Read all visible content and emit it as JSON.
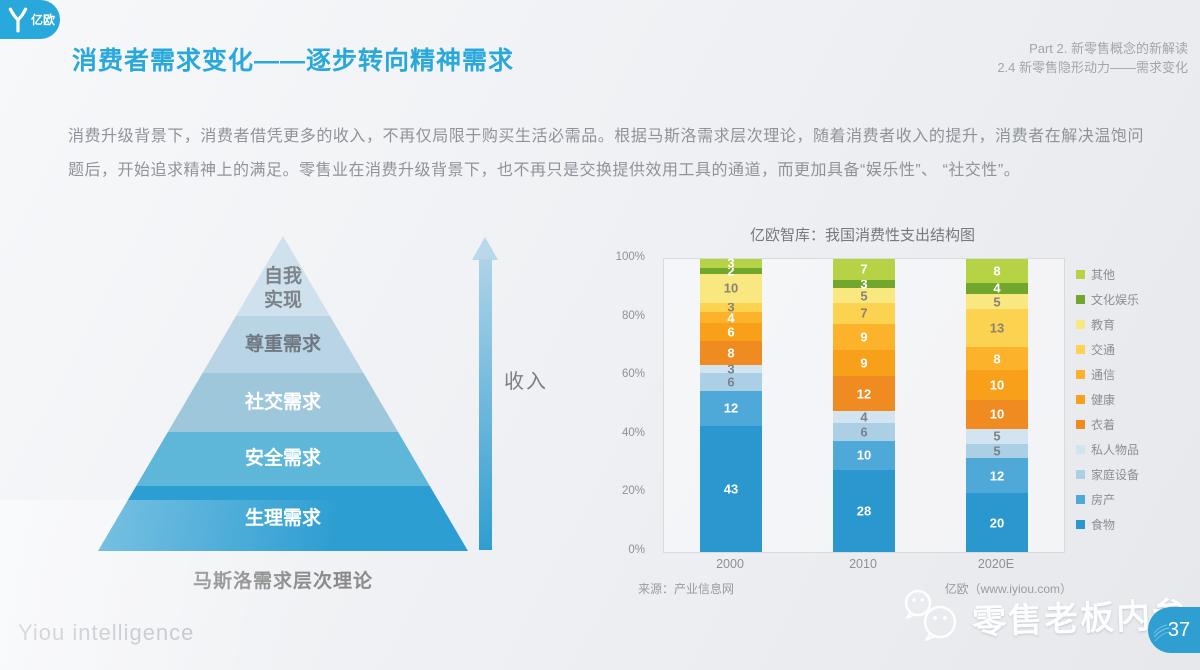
{
  "header": {
    "logo_text": "亿欧",
    "title": "消费者需求变化——逐步转向精神需求",
    "part_line1": "Part 2. 新零售概念的新解读",
    "part_line2": "2.4 新零售隐形动力——需求变化"
  },
  "body": {
    "paragraph": "消费升级背景下，消费者借凭更多的收入，不再仅局限于购买生活必需品。根据马斯洛需求层次理论，随着消费者收入的提升，消费者在解决温饱问题后，开始追求精神上的满足。零售业在消费升级背景下，也不再只是交换提供效用工具的通道，而更加具备“娱乐性”、 “社交性”。"
  },
  "pyramid": {
    "levels": [
      {
        "label": "自我\n实现",
        "color": "#cfe1ec",
        "text_color": "#7d838b"
      },
      {
        "label": "尊重需求",
        "color": "#b9d4e4",
        "text_color": "#6f7881"
      },
      {
        "label": "社交需求",
        "color": "#9fc7db",
        "text_color": "#ffffff"
      },
      {
        "label": "安全需求",
        "color": "#5eb6d8",
        "text_color": "#ffffff"
      },
      {
        "label": "生理需求",
        "color": "#2d9ed2",
        "text_color": "#ffffff"
      }
    ],
    "caption": "马斯洛需求层次理论",
    "arrow_label": "收入"
  },
  "chart_data": {
    "type": "bar",
    "stacked": true,
    "title": "亿欧智库：我国消费性支出结构图",
    "categories": [
      "2000",
      "2010",
      "2020E"
    ],
    "y_ticks": [
      "100%",
      "80%",
      "60%",
      "40%",
      "20%",
      "0%"
    ],
    "ylim": [
      0,
      100
    ],
    "legend_position": "right",
    "series": [
      {
        "name": "食物",
        "color": "#2b97cf",
        "label_color": "#ffffff",
        "values": [
          43,
          28,
          20
        ]
      },
      {
        "name": "房产",
        "color": "#4fa9d8",
        "label_color": "#ffffff",
        "values": [
          12,
          10,
          12
        ]
      },
      {
        "name": "家庭设备",
        "color": "#abcfe5",
        "label_color": "#7b838a",
        "values": [
          6,
          6,
          5
        ]
      },
      {
        "name": "私人物品",
        "color": "#d2e4f0",
        "label_color": "#7b838a",
        "values": [
          3,
          4,
          5
        ]
      },
      {
        "name": "衣着",
        "color": "#f08b22",
        "label_color": "#ffffff",
        "values": [
          8,
          12,
          10
        ]
      },
      {
        "name": "健康",
        "color": "#f9a01b",
        "label_color": "#ffffff",
        "values": [
          6,
          9,
          10
        ]
      },
      {
        "name": "通信",
        "color": "#fcb32b",
        "label_color": "#ffffff",
        "values": [
          4,
          9,
          8
        ]
      },
      {
        "name": "交通",
        "color": "#fbd350",
        "label_color": "#8a8273",
        "values": [
          3,
          7,
          13
        ]
      },
      {
        "name": "教育",
        "color": "#f8e87f",
        "label_color": "#8a8273",
        "values": [
          10,
          5,
          5
        ]
      },
      {
        "name": "文化娱乐",
        "color": "#72a72e",
        "label_color": "#ffffff",
        "values": [
          2,
          3,
          4
        ]
      },
      {
        "name": "其他",
        "color": "#b6d245",
        "label_color": "#ffffff",
        "values": [
          3,
          7,
          8
        ]
      }
    ]
  },
  "sources": {
    "left": "来源：产业信息网",
    "right": "亿欧（www.iyiou.com）"
  },
  "footer": {
    "brand": "Yiou intelligence",
    "watermark": "零售老板内参",
    "page": "37"
  }
}
